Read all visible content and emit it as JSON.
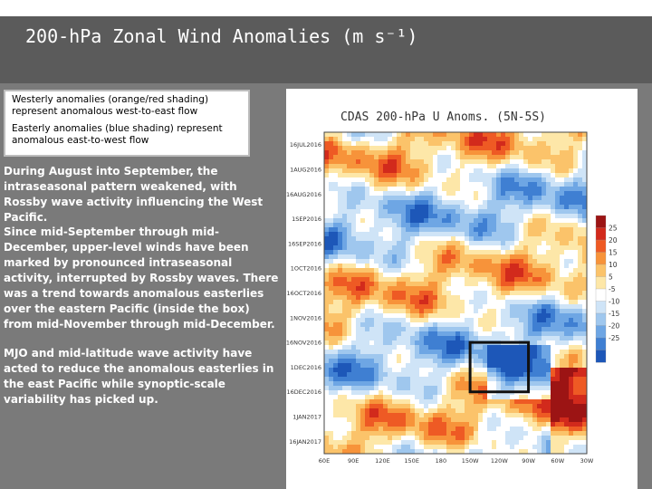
{
  "slide": {
    "title": "200-hPa Zonal Wind Anomalies (m s⁻¹)"
  },
  "legend_box": {
    "westerly": "Westerly anomalies (orange/red shading) represent anomalous west-to-east flow",
    "easterly": "Easterly anomalies (blue shading) represent anomalous east-to-west flow"
  },
  "paragraphs": [
    "During August into September, the intraseasonal pattern weakened, with Rossby wave activity influencing the West Pacific.",
    "Since mid-September through mid-December, upper-level winds have been marked by pronounced intraseasonal activity, interrupted by Rossby waves. There was a trend towards anomalous easterlies over the eastern Pacific (inside the box) from mid-November through mid-December.",
    "MJO and mid-latitude wave activity have acted to reduce the anomalous easterlies in the east Pacific while synoptic-scale variability has picked up."
  ],
  "chart_data": {
    "type": "heatmap",
    "title": "CDAS 200-hPa U Anoms. (5N-5S)",
    "y_tick_labels": [
      "16JUL2016",
      "1AUG2016",
      "16AUG2016",
      "1SEP2016",
      "16SEP2016",
      "1OCT2016",
      "16OCT2016",
      "1NOV2016",
      "16NOV2016",
      "1DEC2016",
      "16DEC2016",
      "1JAN2017",
      "16JAN2017"
    ],
    "x_tick_labels": [
      "60E",
      "90E",
      "120E",
      "150E",
      "180",
      "150W",
      "120W",
      "90W",
      "60W",
      "30W"
    ],
    "colorbar_labels": [
      "25",
      "20",
      "15",
      "10",
      "5",
      "-5",
      "-10",
      "-15",
      "-20",
      "-25"
    ],
    "colorbar_colors": [
      "#9c1414",
      "#d22a1c",
      "#ee5a24",
      "#f7933a",
      "#fbc36a",
      "#fde7a8",
      "#ffffff",
      "#cfe4f7",
      "#9fc7ee",
      "#6ea6e4",
      "#3f7fd2",
      "#1d57b8"
    ],
    "box_region": {
      "lon_range": [
        "150W",
        "90W"
      ],
      "time_range": [
        "16NOV2016",
        "16DEC2016"
      ],
      "box_color": "#111111"
    }
  }
}
